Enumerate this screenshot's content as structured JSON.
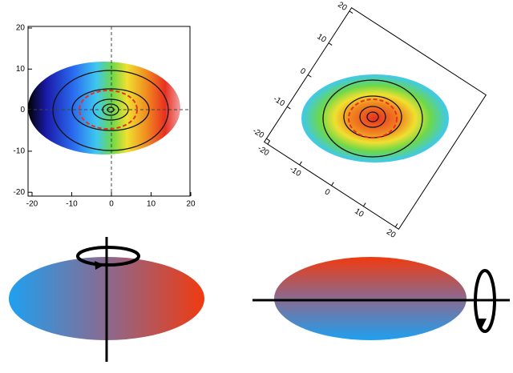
{
  "left_panel": {
    "x_ticks": [
      "-20",
      "-10",
      "0",
      "10",
      "20"
    ],
    "y_ticks": [
      "20",
      "10",
      "0",
      "-10",
      "-20"
    ]
  },
  "right_panel": {
    "x_ticks": [
      "-20",
      "-10",
      "0",
      "10",
      "20"
    ],
    "y_ticks": [
      "20",
      "10",
      "0",
      "-10",
      "-20"
    ]
  }
}
